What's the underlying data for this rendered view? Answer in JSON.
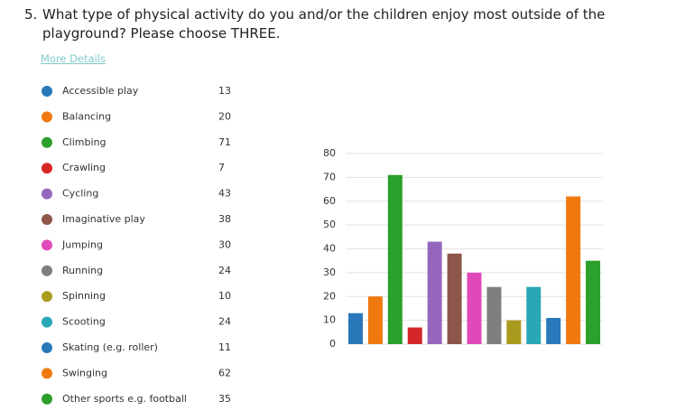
{
  "chart_data": {
    "type": "bar",
    "question_number": "5.",
    "title": "What type of physical activity do you and/or the children enjoy most outside of the playground? Please choose THREE.",
    "link": "More Details",
    "categories": [
      "Accessible play",
      "Balancing",
      "Climbing",
      "Crawling",
      "Cycling",
      "Imaginative play",
      "Jumping",
      "Running",
      "Spinning",
      "Scooting",
      "Skating (e.g. roller)",
      "Swinging",
      "Other sports e.g. football"
    ],
    "values": [
      13,
      20,
      71,
      7,
      43,
      38,
      30,
      24,
      10,
      24,
      11,
      62,
      35
    ],
    "colors": [
      "#2a78b9",
      "#f0790f",
      "#2ca02c",
      "#d62728",
      "#9467bd",
      "#8c564b",
      "#e04ab8",
      "#7f7f7f",
      "#a89b1e",
      "#2aa7b5",
      "#2a78b9",
      "#f0790f",
      "#2ca02c"
    ],
    "ylim": [
      0,
      80
    ],
    "yticks": [
      0,
      10,
      20,
      30,
      40,
      50,
      60,
      70,
      80
    ],
    "grid": true
  }
}
